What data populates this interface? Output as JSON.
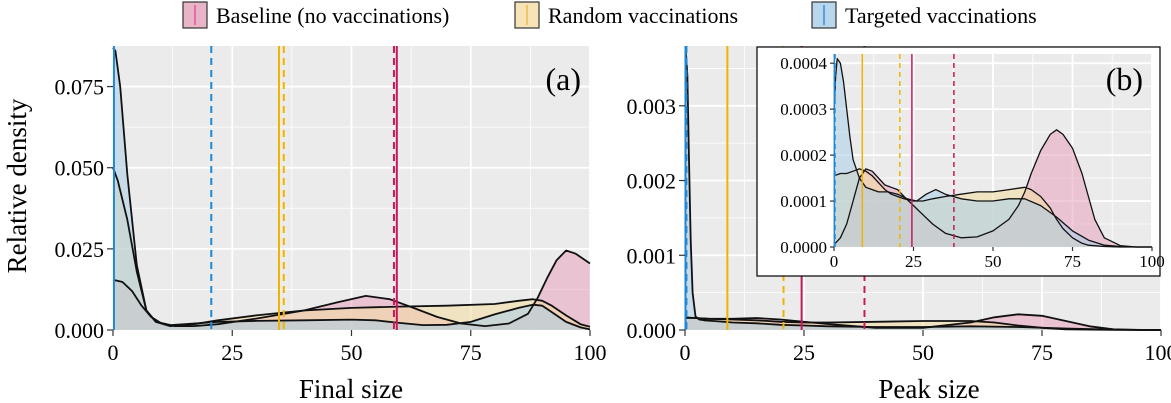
{
  "legend": {
    "position": "top",
    "items": [
      {
        "label": "Baseline (no vaccinations)",
        "fill": "#e8b5c8",
        "stroke": "#e8509a"
      },
      {
        "label": "Random vaccinations",
        "fill": "#f6e4b6",
        "stroke": "#f2b84a"
      },
      {
        "label": "Targeted vaccinations",
        "fill": "#b8d6ec",
        "stroke": "#3a8fd0"
      }
    ]
  },
  "ylabel_shared": "Relative density",
  "colors": {
    "baseline_fill": "#e8a3bd",
    "random_fill": "#f4dca1",
    "targeted_fill": "#a9cde8",
    "baseline_line": "#c8185a",
    "random_line": "#f0b400",
    "targeted_line": "#1e88d6",
    "panel_bg": "#ebebeb",
    "grid": "#ffffff"
  },
  "chart_data": [
    {
      "type": "area",
      "tag": "(a)",
      "xlabel": "Final size",
      "ylabel": "Relative density",
      "xlim": [
        0,
        100
      ],
      "ylim": [
        0,
        0.0875
      ],
      "xticks": [
        0,
        25,
        50,
        75,
        100
      ],
      "xtick_labels": [
        "0",
        "25",
        "50",
        "75",
        "100"
      ],
      "yticks": [
        0,
        0.025,
        0.05,
        0.075
      ],
      "ytick_labels": [
        "0.000",
        "0.025",
        "0.050",
        "0.075"
      ],
      "grid": true,
      "series": [
        {
          "name": "Baseline (no vaccinations)",
          "key": "baseline",
          "x": [
            0,
            2,
            4,
            6,
            8,
            10,
            13,
            17,
            22,
            30,
            40,
            47,
            53,
            58,
            63,
            68,
            73,
            78,
            83,
            87,
            89,
            91,
            93,
            95,
            97,
            100
          ],
          "y": [
            0.0155,
            0.0148,
            0.012,
            0.0075,
            0.004,
            0.0022,
            0.0012,
            0.0012,
            0.0018,
            0.0035,
            0.006,
            0.0085,
            0.0105,
            0.0095,
            0.0068,
            0.004,
            0.002,
            0.0012,
            0.002,
            0.005,
            0.0098,
            0.016,
            0.0215,
            0.0245,
            0.0235,
            0.0205
          ]
        },
        {
          "name": "Random vaccinations",
          "key": "random",
          "x": [
            0,
            1,
            3,
            5,
            7,
            9,
            12,
            17,
            22,
            30,
            40,
            50,
            60,
            70,
            80,
            85,
            88,
            90,
            92,
            95,
            98,
            100
          ],
          "y": [
            0.05,
            0.046,
            0.034,
            0.018,
            0.006,
            0.0025,
            0.0012,
            0.0018,
            0.003,
            0.0045,
            0.006,
            0.0068,
            0.0072,
            0.0075,
            0.008,
            0.009,
            0.0095,
            0.009,
            0.0075,
            0.0045,
            0.0018,
            0.001
          ]
        },
        {
          "name": "Targeted vaccinations",
          "key": "targeted",
          "x": [
            0,
            0.5,
            1.5,
            3,
            5,
            7,
            9,
            12,
            17,
            22,
            30,
            40,
            50,
            55,
            60,
            65,
            70,
            75,
            80,
            85,
            88,
            90,
            92,
            95,
            98,
            100
          ],
          "y": [
            0.087,
            0.086,
            0.075,
            0.048,
            0.02,
            0.006,
            0.0025,
            0.0015,
            0.002,
            0.0025,
            0.0028,
            0.003,
            0.0032,
            0.003,
            0.0022,
            0.0015,
            0.0016,
            0.0025,
            0.0048,
            0.0068,
            0.0078,
            0.0075,
            0.0055,
            0.0025,
            0.0008,
            0.0002
          ]
        }
      ],
      "vlines": [
        {
          "series": "baseline",
          "style": "solid",
          "x": 59.5
        },
        {
          "series": "baseline",
          "style": "dashed",
          "x": 58.9
        },
        {
          "series": "random",
          "style": "solid",
          "x": 34.8
        },
        {
          "series": "random",
          "style": "dashed",
          "x": 35.8
        },
        {
          "series": "targeted",
          "style": "solid",
          "x": 0.2
        },
        {
          "series": "targeted",
          "style": "dashed",
          "x": 20.6
        }
      ]
    },
    {
      "type": "area",
      "tag": "(b)",
      "xlabel": "Peak size",
      "ylabel": "",
      "xlim": [
        0,
        100
      ],
      "ylim": [
        0,
        0.0038
      ],
      "xticks": [
        0,
        25,
        50,
        75,
        100
      ],
      "xtick_labels": [
        "0",
        "25",
        "50",
        "75",
        "100"
      ],
      "yticks": [
        0,
        0.001,
        0.002,
        0.003
      ],
      "ytick_labels": [
        "0.000",
        "0.001",
        "0.002",
        "0.003"
      ],
      "grid": true,
      "series": [
        {
          "name": "Baseline (no vaccinations)",
          "key": "baseline",
          "x": [
            0,
            2,
            5,
            10,
            15,
            20,
            25,
            30,
            40,
            50,
            60,
            65,
            70,
            75,
            80,
            85,
            90,
            95,
            100
          ],
          "y": [
            0.00016,
            0.00016,
            0.00015,
            0.00015,
            0.00016,
            0.00014,
            0.00011,
            8e-05,
            3e-05,
            3e-05,
            0.0001,
            0.00017,
            0.00021,
            0.00019,
            0.00012,
            5e-05,
            1e-05,
            2e-06,
            0
          ],
          "inset": {
            "x": [
              0,
              2,
              4,
              6,
              8,
              10,
              12,
              14,
              16,
              18,
              20,
              22,
              25,
              28,
              31,
              35,
              40,
              45,
              50,
              55,
              58,
              60,
              62,
              65,
              68,
              70,
              72,
              75,
              78,
              80,
              82,
              85,
              90,
              95,
              100
            ],
            "y": [
              5e-06,
              2e-05,
              5e-05,
              0.0001,
              0.00015,
              0.00017,
              0.000165,
              0.00015,
              0.000135,
              0.00013,
              0.000125,
              0.00011,
              9e-05,
              7e-05,
              5e-05,
              3e-05,
              2e-05,
              2.2e-05,
              3.5e-05,
              6e-05,
              9e-05,
              0.00012,
              0.00016,
              0.00021,
              0.000245,
              0.000255,
              0.000245,
              0.000215,
              0.00016,
              0.00011,
              6e-05,
              2e-05,
              3e-06,
              0,
              0
            ]
          }
        },
        {
          "name": "Random vaccinations",
          "key": "random",
          "x": [
            0,
            2,
            5,
            10,
            15,
            20,
            25,
            30,
            40,
            50,
            60,
            65,
            70,
            75,
            80,
            90,
            100
          ],
          "y": [
            0.00017,
            0.00016,
            0.00015,
            0.00014,
            0.00013,
            0.00011,
            0.0001,
            0.0001,
            0.00011,
            0.00012,
            0.00012,
            0.0001,
            6e-05,
            3e-05,
            1e-05,
            1e-06,
            0
          ],
          "inset": {
            "x": [
              0,
              2,
              4,
              6,
              8,
              10,
              12,
              14,
              16,
              18,
              20,
              22,
              25,
              28,
              31,
              35,
              40,
              45,
              50,
              55,
              60,
              62,
              65,
              68,
              70,
              72,
              75,
              78,
              80,
              85,
              90,
              95,
              100
            ],
            "y": [
              0.000155,
              0.00016,
              0.00016,
              0.000165,
              0.00017,
              0.000165,
              0.000155,
              0.00014,
              0.000125,
              0.000115,
              0.00011,
              0.000105,
              0.0001,
              0.0001,
              0.000105,
              0.00011,
              0.000115,
              0.00012,
              0.00012,
              0.000125,
              0.00013,
              0.000125,
              0.00011,
              8.5e-05,
              6e-05,
              4e-05,
              2e-05,
              8e-06,
              4e-06,
              1e-06,
              0,
              0,
              0
            ]
          }
        },
        {
          "name": "Targeted vaccinations",
          "key": "targeted",
          "x": [
            0,
            0.2,
            0.5,
            0.8,
            1.2,
            1.6,
            2.2,
            3,
            4,
            6,
            10,
            15,
            20,
            25,
            30,
            40,
            50,
            60,
            70,
            80,
            90,
            100
          ],
          "y": [
            0.0037,
            0.0037,
            0.0034,
            0.0024,
            0.0012,
            0.0005,
            0.00018,
            0.00014,
            0.00013,
            0.00012,
            0.0001,
            9e-05,
            7e-05,
            6e-05,
            5e-05,
            4e-05,
            4e-05,
            5e-05,
            4e-05,
            2e-05,
            5e-06,
            0
          ],
          "inset": {
            "x": [
              0,
              0.5,
              1,
              2,
              3,
              4,
              5,
              6,
              8,
              10,
              12,
              14,
              17,
              20,
              23,
              26,
              29,
              32,
              35,
              40,
              45,
              50,
              55,
              60,
              65,
              70,
              75,
              80,
              85,
              90,
              95,
              100
            ],
            "y": [
              0.00029,
              0.00037,
              0.00041,
              0.0004,
              0.00036,
              0.0003,
              0.00024,
              0.00019,
              0.00015,
              0.00013,
              0.000125,
              0.00012,
              0.00012,
              0.000115,
              0.000105,
              0.0001,
              0.000115,
              0.000125,
              0.000115,
              0.000105,
              0.0001,
              0.0001,
              0.000105,
              0.000105,
              9e-05,
              6.5e-05,
              3.5e-05,
              1.5e-05,
              4e-06,
              1e-06,
              0,
              0
            ]
          }
        }
      ],
      "vlines": [
        {
          "series": "baseline",
          "style": "solid",
          "x": 24.5
        },
        {
          "series": "baseline",
          "style": "dashed",
          "x": 37.7
        },
        {
          "series": "random",
          "style": "solid",
          "x": 8.9
        },
        {
          "series": "random",
          "style": "dashed",
          "x": 20.7
        },
        {
          "series": "targeted",
          "style": "solid",
          "x": 0.1
        },
        {
          "series": "targeted",
          "style": "dashed",
          "x": 0.3
        }
      ],
      "inset": {
        "xlim": [
          0,
          100
        ],
        "ylim": [
          0,
          0.00042
        ],
        "xticks": [
          0,
          25,
          50,
          75,
          100
        ],
        "xtick_labels": [
          "0",
          "25",
          "50",
          "75",
          "100"
        ],
        "yticks": [
          0,
          0.0001,
          0.0002,
          0.0003,
          0.0004
        ],
        "ytick_labels": [
          "0.0000",
          "0.0001",
          "0.0002",
          "0.0003",
          "0.0004"
        ],
        "grid": true
      }
    }
  ]
}
